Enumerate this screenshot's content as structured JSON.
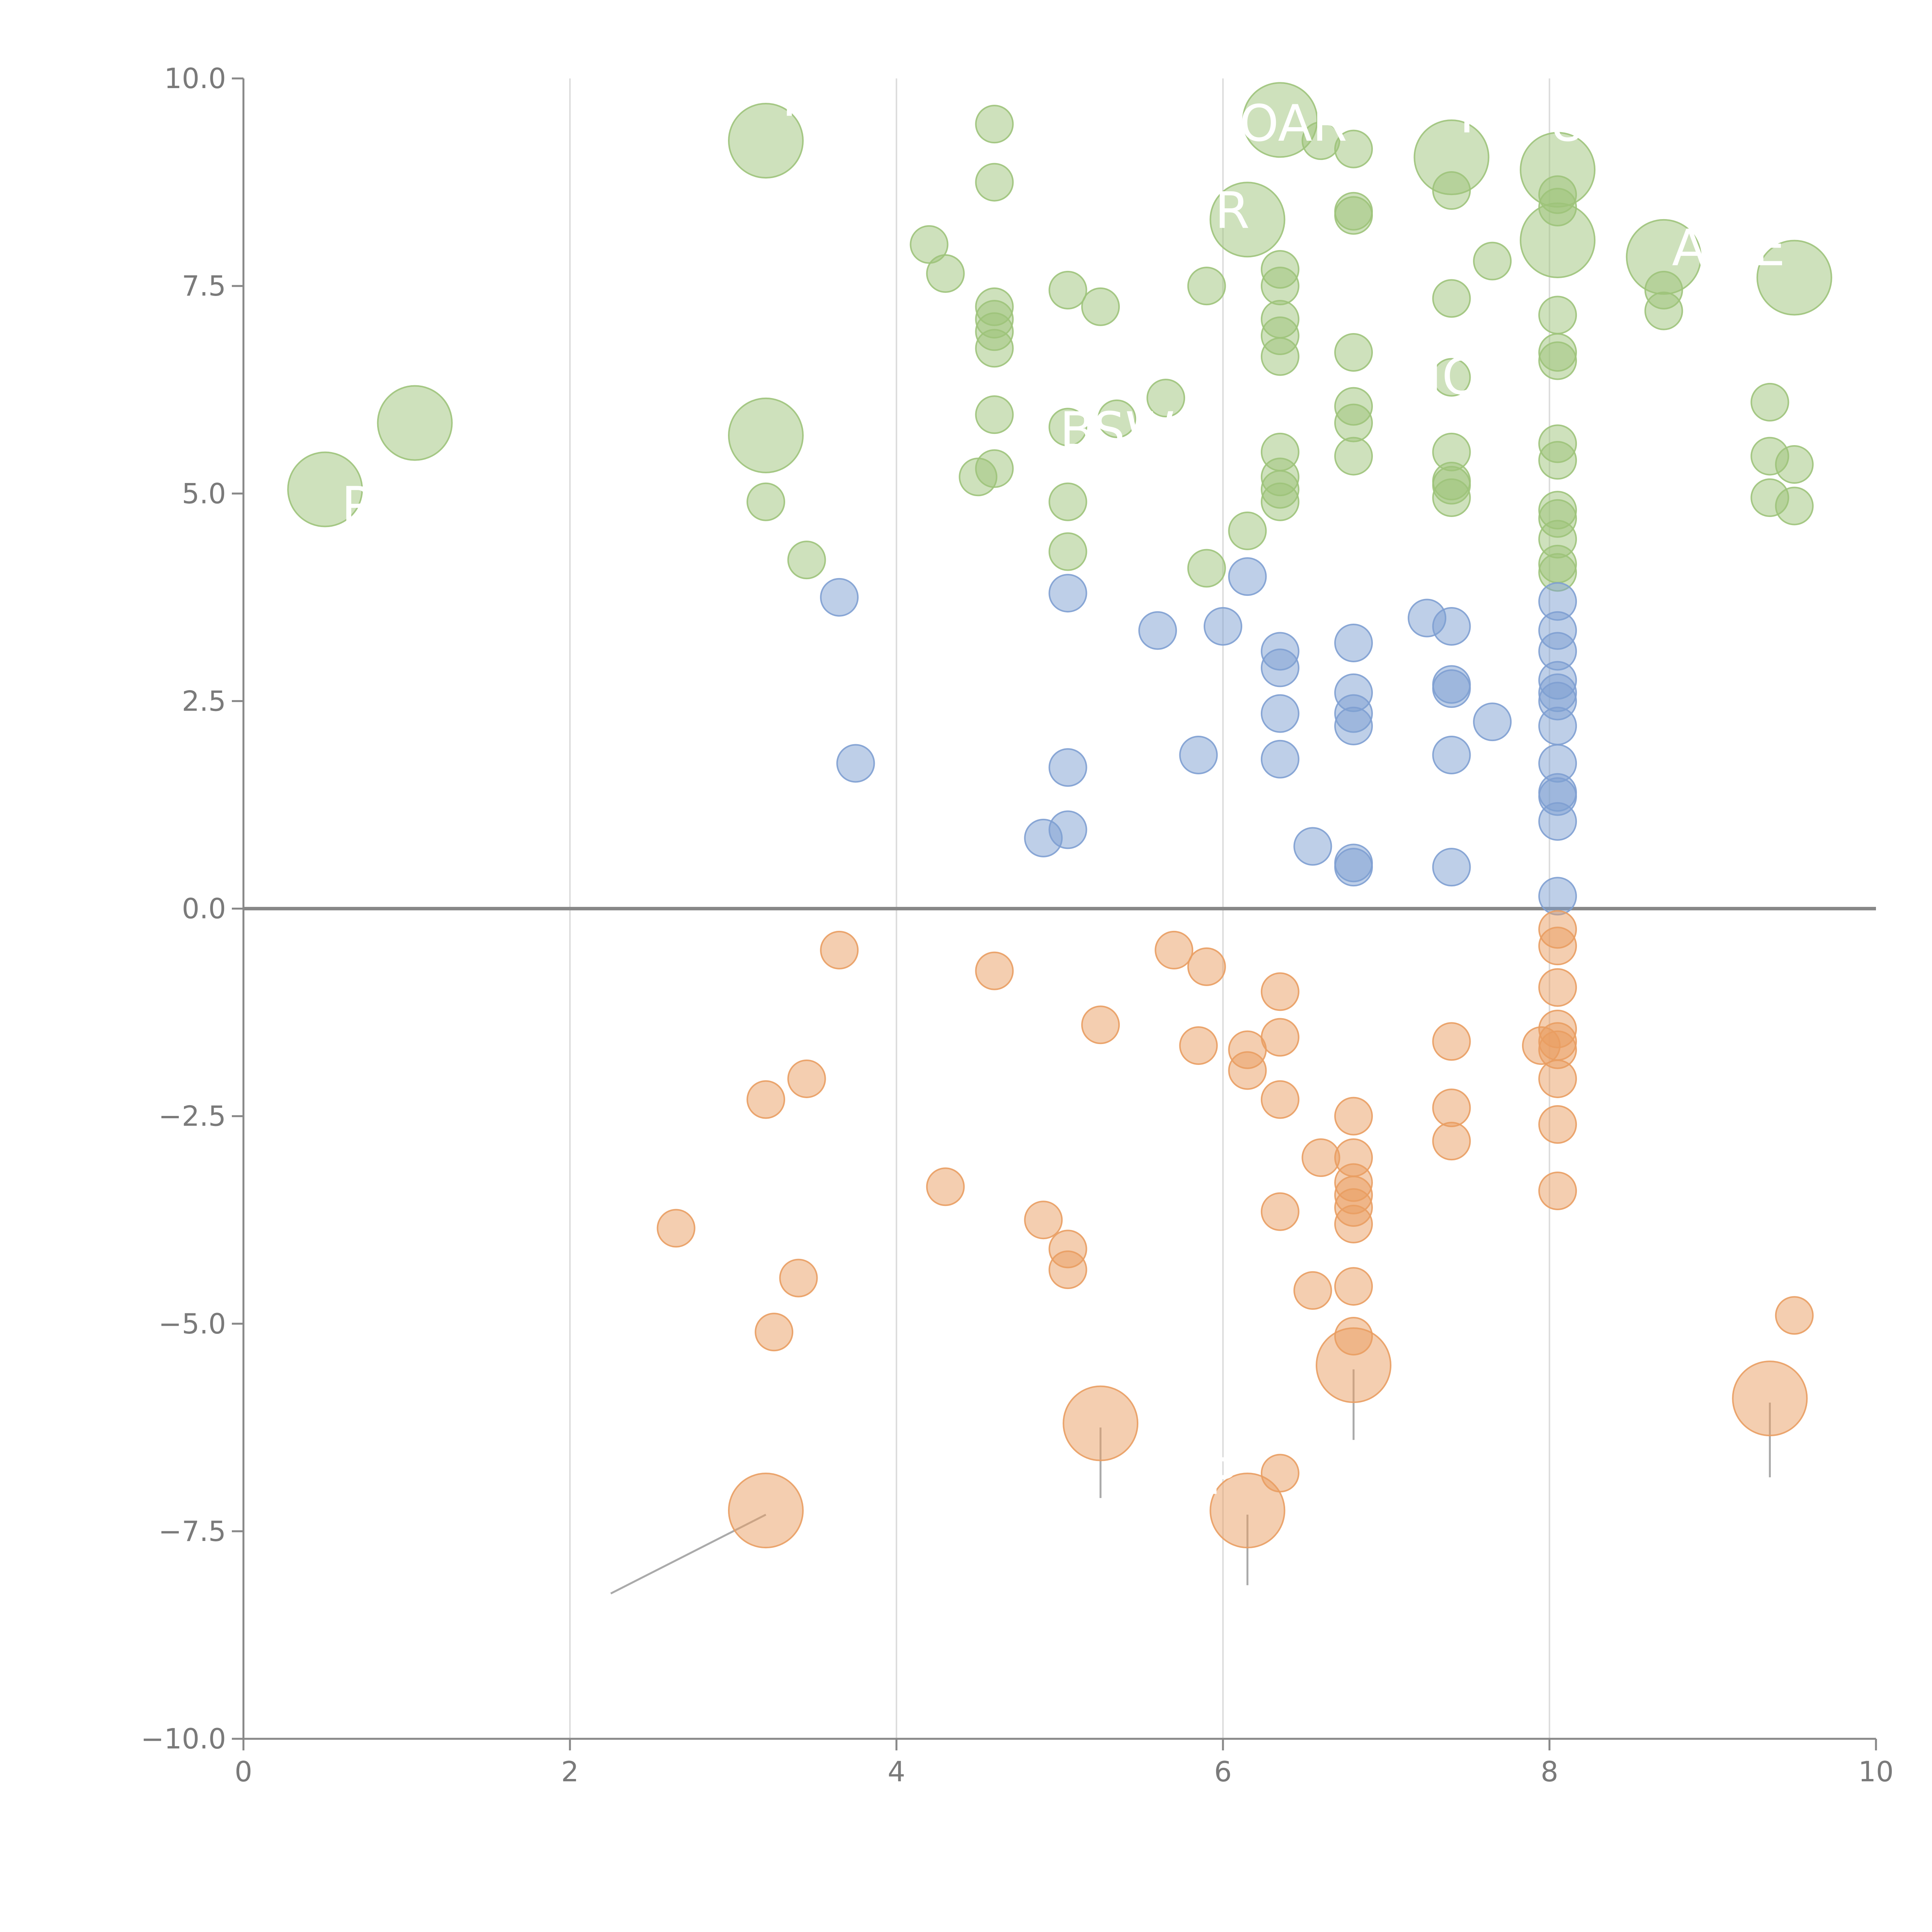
{
  "chart_data": {
    "type": "scatter",
    "title": "",
    "xlabel": "",
    "ylabel": "",
    "xlim": [
      0,
      10
    ],
    "ylim": [
      -10,
      10
    ],
    "x_ticks": [
      "0",
      "2",
      "4",
      "6",
      "8",
      "10"
    ],
    "y_ticks": [
      "−10.0",
      "−7.5",
      "−5.0",
      "−2.5",
      "0.0",
      "2.5",
      "5.0",
      "7.5",
      "10.0"
    ],
    "grid": "vertical lines at x = 2, 4, 6, 8",
    "reference_line": {
      "y": 0
    },
    "colors": {
      "green": "#9dc37a",
      "blue": "#7e9fd2",
      "orange": "#e99d62",
      "axis": "#888888",
      "grid": "#dddddd"
    },
    "series": [
      {
        "color_key": "green",
        "points": [
          [
            0.5,
            5.05,
            "big"
          ],
          [
            1.05,
            5.85,
            "big"
          ],
          [
            3.2,
            9.25,
            "big"
          ],
          [
            3.2,
            5.7,
            "big"
          ],
          [
            3.2,
            4.9,
            "small"
          ],
          [
            3.45,
            4.2,
            "small"
          ],
          [
            4.2,
            8.0,
            "small"
          ],
          [
            4.3,
            7.65,
            "small"
          ],
          [
            4.5,
            5.2,
            "small"
          ],
          [
            4.6,
            9.45,
            "small"
          ],
          [
            4.6,
            8.75,
            "small"
          ],
          [
            4.6,
            7.25,
            "small"
          ],
          [
            4.6,
            7.1,
            "small"
          ],
          [
            4.6,
            6.95,
            "small"
          ],
          [
            4.6,
            6.75,
            "small"
          ],
          [
            4.6,
            5.95,
            "small"
          ],
          [
            4.6,
            5.3,
            "small"
          ],
          [
            5.05,
            7.45,
            "small"
          ],
          [
            5.05,
            5.8,
            "small"
          ],
          [
            5.05,
            4.9,
            "small"
          ],
          [
            5.05,
            4.3,
            "small"
          ],
          [
            5.25,
            7.25,
            "small"
          ],
          [
            5.35,
            5.9,
            "small"
          ],
          [
            5.65,
            6.15,
            "small"
          ],
          [
            5.9,
            7.5,
            "small"
          ],
          [
            5.9,
            4.1,
            "small"
          ],
          [
            6.15,
            4.55,
            "small"
          ],
          [
            6.15,
            8.3,
            "big"
          ],
          [
            6.35,
            9.5,
            "big"
          ],
          [
            6.35,
            7.7,
            "small"
          ],
          [
            6.35,
            7.5,
            "small"
          ],
          [
            6.35,
            7.1,
            "small"
          ],
          [
            6.35,
            6.9,
            "small"
          ],
          [
            6.35,
            6.65,
            "small"
          ],
          [
            6.35,
            5.5,
            "small"
          ],
          [
            6.35,
            5.2,
            "small"
          ],
          [
            6.35,
            5.05,
            "small"
          ],
          [
            6.35,
            4.9,
            "small"
          ],
          [
            6.6,
            9.25,
            "small"
          ],
          [
            6.8,
            9.15,
            "small"
          ],
          [
            6.8,
            8.4,
            "small"
          ],
          [
            6.8,
            8.35,
            "small"
          ],
          [
            6.8,
            6.7,
            "small"
          ],
          [
            6.8,
            6.05,
            "small"
          ],
          [
            6.8,
            5.85,
            "small"
          ],
          [
            6.8,
            5.45,
            "small"
          ],
          [
            7.4,
            9.05,
            "big"
          ],
          [
            7.4,
            8.65,
            "small"
          ],
          [
            7.4,
            7.35,
            "small"
          ],
          [
            7.4,
            6.4,
            "small"
          ],
          [
            7.4,
            5.5,
            "small"
          ],
          [
            7.4,
            5.15,
            "small"
          ],
          [
            7.4,
            5.1,
            "small"
          ],
          [
            7.4,
            4.95,
            "small"
          ],
          [
            7.65,
            7.8,
            "small"
          ],
          [
            8.05,
            8.9,
            "big"
          ],
          [
            8.05,
            8.05,
            "big"
          ],
          [
            8.05,
            8.6,
            "small"
          ],
          [
            8.05,
            8.45,
            "small"
          ],
          [
            8.05,
            7.15,
            "small"
          ],
          [
            8.05,
            6.7,
            "small"
          ],
          [
            8.05,
            6.6,
            "small"
          ],
          [
            8.05,
            5.6,
            "small"
          ],
          [
            8.05,
            5.4,
            "small"
          ],
          [
            8.05,
            4.8,
            "small"
          ],
          [
            8.05,
            4.7,
            "small"
          ],
          [
            8.05,
            4.45,
            "small"
          ],
          [
            8.05,
            4.15,
            "small"
          ],
          [
            8.05,
            4.05,
            "small"
          ],
          [
            8.7,
            7.85,
            "big"
          ],
          [
            8.7,
            7.45,
            "small"
          ],
          [
            8.7,
            7.2,
            "small"
          ],
          [
            9.35,
            6.1,
            "small"
          ],
          [
            9.35,
            5.45,
            "small"
          ],
          [
            9.35,
            4.95,
            "small"
          ],
          [
            9.5,
            7.6,
            "big"
          ],
          [
            9.5,
            5.35,
            "small"
          ],
          [
            9.5,
            4.85,
            "small"
          ]
        ]
      },
      {
        "color_key": "blue",
        "points": [
          [
            3.65,
            3.75,
            "small"
          ],
          [
            3.75,
            1.75,
            "small"
          ],
          [
            4.9,
            0.85,
            "small"
          ],
          [
            5.05,
            3.8,
            "small"
          ],
          [
            5.05,
            1.7,
            "small"
          ],
          [
            5.05,
            0.95,
            "small"
          ],
          [
            5.6,
            3.35,
            "small"
          ],
          [
            5.85,
            1.85,
            "small"
          ],
          [
            6.0,
            3.4,
            "small"
          ],
          [
            6.15,
            4.0,
            "small"
          ],
          [
            6.35,
            3.1,
            "small"
          ],
          [
            6.35,
            2.9,
            "small"
          ],
          [
            6.35,
            2.35,
            "small"
          ],
          [
            6.35,
            1.8,
            "small"
          ],
          [
            6.55,
            0.75,
            "small"
          ],
          [
            6.8,
            3.2,
            "small"
          ],
          [
            6.8,
            2.6,
            "small"
          ],
          [
            6.8,
            2.35,
            "small"
          ],
          [
            6.8,
            2.2,
            "small"
          ],
          [
            6.8,
            0.55,
            "small"
          ],
          [
            6.8,
            0.5,
            "small"
          ],
          [
            7.25,
            3.5,
            "small"
          ],
          [
            7.4,
            3.4,
            "small"
          ],
          [
            7.4,
            2.7,
            "small"
          ],
          [
            7.4,
            2.65,
            "small"
          ],
          [
            7.4,
            1.85,
            "small"
          ],
          [
            7.4,
            0.5,
            "small"
          ],
          [
            7.65,
            2.25,
            "small"
          ],
          [
            8.05,
            3.7,
            "small"
          ],
          [
            8.05,
            3.35,
            "small"
          ],
          [
            8.05,
            3.1,
            "small"
          ],
          [
            8.05,
            2.75,
            "small"
          ],
          [
            8.05,
            2.6,
            "small"
          ],
          [
            8.05,
            2.5,
            "small"
          ],
          [
            8.05,
            2.2,
            "small"
          ],
          [
            8.05,
            1.75,
            "small"
          ],
          [
            8.05,
            1.4,
            "small"
          ],
          [
            8.05,
            1.35,
            "small"
          ],
          [
            8.05,
            1.05,
            "small"
          ],
          [
            8.05,
            0.15,
            "small"
          ]
        ]
      },
      {
        "color_key": "orange",
        "points": [
          [
            2.65,
            -3.85,
            "small"
          ],
          [
            3.2,
            -2.3,
            "small"
          ],
          [
            3.2,
            -7.25,
            "big"
          ],
          [
            3.25,
            -5.1,
            "small"
          ],
          [
            3.4,
            -4.45,
            "small"
          ],
          [
            3.45,
            -2.05,
            "small"
          ],
          [
            3.65,
            -0.5,
            "small"
          ],
          [
            4.3,
            -3.35,
            "small"
          ],
          [
            4.6,
            -0.75,
            "small"
          ],
          [
            4.9,
            -3.75,
            "small"
          ],
          [
            5.05,
            -4.1,
            "small"
          ],
          [
            5.05,
            -4.35,
            "small"
          ],
          [
            5.25,
            -1.4,
            "small"
          ],
          [
            5.25,
            -6.2,
            "big"
          ],
          [
            5.7,
            -0.5,
            "small"
          ],
          [
            5.85,
            -1.65,
            "small"
          ],
          [
            5.9,
            -0.7,
            "small"
          ],
          [
            6.15,
            -1.7,
            "small"
          ],
          [
            6.15,
            -1.95,
            "small"
          ],
          [
            6.15,
            -7.25,
            "big"
          ],
          [
            6.35,
            -1.0,
            "small"
          ],
          [
            6.35,
            -1.55,
            "small"
          ],
          [
            6.35,
            -2.3,
            "small"
          ],
          [
            6.35,
            -3.65,
            "small"
          ],
          [
            6.35,
            -6.8,
            "small"
          ],
          [
            6.55,
            -4.6,
            "small"
          ],
          [
            6.6,
            -3.0,
            "small"
          ],
          [
            6.8,
            -2.5,
            "small"
          ],
          [
            6.8,
            -3.0,
            "small"
          ],
          [
            6.8,
            -3.3,
            "small"
          ],
          [
            6.8,
            -3.45,
            "small"
          ],
          [
            6.8,
            -3.6,
            "small"
          ],
          [
            6.8,
            -3.8,
            "small"
          ],
          [
            6.8,
            -4.55,
            "small"
          ],
          [
            6.8,
            -5.15,
            "small"
          ],
          [
            6.8,
            -5.5,
            "big"
          ],
          [
            7.4,
            -1.6,
            "small"
          ],
          [
            7.4,
            -2.4,
            "small"
          ],
          [
            7.4,
            -2.8,
            "small"
          ],
          [
            7.95,
            -1.65,
            "small"
          ],
          [
            8.05,
            -0.25,
            "small"
          ],
          [
            8.05,
            -0.45,
            "small"
          ],
          [
            8.05,
            -0.95,
            "small"
          ],
          [
            8.05,
            -1.45,
            "small"
          ],
          [
            8.05,
            -1.6,
            "small"
          ],
          [
            8.05,
            -1.7,
            "small"
          ],
          [
            8.05,
            -2.05,
            "small"
          ],
          [
            8.05,
            -2.6,
            "small"
          ],
          [
            8.05,
            -3.4,
            "small"
          ],
          [
            9.35,
            -5.9,
            "big"
          ],
          [
            9.5,
            -4.9,
            "small"
          ]
        ]
      }
    ],
    "labels": [
      {
        "text": "P",
        "x": 0.6,
        "y": 4.65,
        "color": "#ffffff"
      },
      {
        "text": "T",
        "x": 3.25,
        "y": 9.55,
        "color": "#ffffff"
      },
      {
        "text": "OAR",
        "x": 6.1,
        "y": 9.25,
        "color": "#ffffff"
      },
      {
        "text": "T",
        "x": 7.4,
        "y": 9.35,
        "color": "#ffffff"
      },
      {
        "text": "UI",
        "x": 8.0,
        "y": 9.25,
        "color": "#ffffff"
      },
      {
        "text": "R",
        "x": 5.95,
        "y": 8.2,
        "color": "#ffffff"
      },
      {
        "text": "A",
        "x": 8.75,
        "y": 7.75,
        "color": "#ffffff"
      },
      {
        "text": "E",
        "x": 9.25,
        "y": 7.75,
        "color": "#ffffff"
      },
      {
        "text": "IO",
        "x": 7.25,
        "y": 6.2,
        "color": "#ffffff"
      },
      {
        "text": "BSW",
        "x": 5.0,
        "y": 5.55,
        "color": "#ffffff"
      },
      {
        "text": "P",
        "x": 5.9,
        "y": -7.05,
        "color": "#ffffff"
      }
    ],
    "leader_lines": [
      {
        "x1": 3.2,
        "y1": -7.3,
        "x2": 2.25,
        "y2": -8.25,
        "color": "#aaaaaa"
      },
      {
        "x1": 5.25,
        "y1": -6.25,
        "x2": 5.25,
        "y2": -7.1,
        "color": "#aaaaaa"
      },
      {
        "x1": 6.15,
        "y1": -7.3,
        "x2": 6.15,
        "y2": -8.15,
        "color": "#aaaaaa"
      },
      {
        "x1": 6.8,
        "y1": -5.55,
        "x2": 6.8,
        "y2": -6.4,
        "color": "#aaaaaa"
      },
      {
        "x1": 9.35,
        "y1": -5.95,
        "x2": 9.35,
        "y2": -6.85,
        "color": "#aaaaaa"
      },
      {
        "x1": 3.2,
        "y1": 5.75,
        "x2": 3.05,
        "y2": 5.85,
        "color": "#ffffff"
      },
      {
        "x1": 1.05,
        "y1": 5.95,
        "x2": 1.03,
        "y2": 6.25,
        "color": "#ffffff"
      },
      {
        "x1": 0.55,
        "y1": 5.0,
        "x2": 0.65,
        "y2": 4.95,
        "color": "#ffffff"
      },
      {
        "x1": 7.4,
        "y1": 9.0,
        "x2": 7.25,
        "y2": 8.9,
        "color": "#ffffff"
      },
      {
        "x1": 8.05,
        "y1": 8.0,
        "x2": 8.05,
        "y2": 7.9,
        "color": "#ffffff"
      },
      {
        "x1": 9.5,
        "y1": 7.65,
        "x2": 9.3,
        "y2": 7.6,
        "color": "#ffffff"
      }
    ]
  }
}
